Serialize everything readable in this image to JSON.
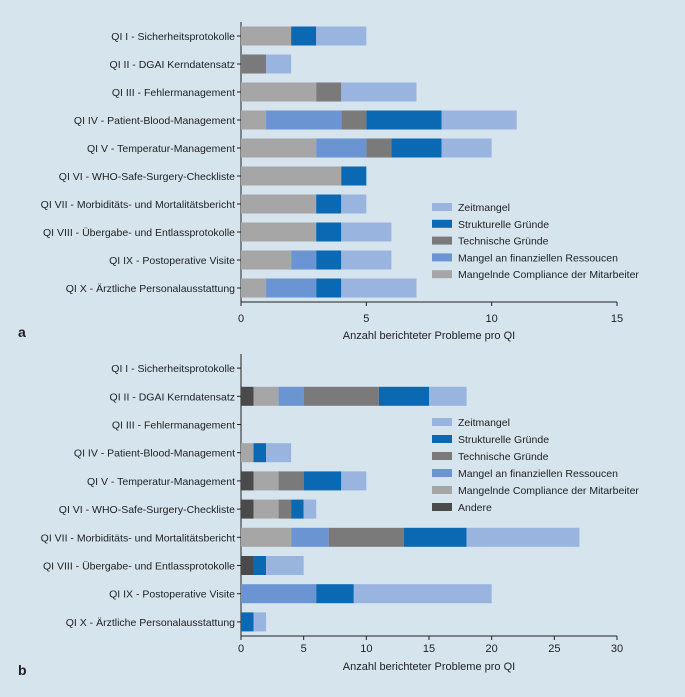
{
  "chart_data": [
    {
      "panel": "a",
      "type": "bar",
      "orientation": "horizontal",
      "stacked": true,
      "xlabel": "Anzahl berichteter Probleme pro QI",
      "xlim": [
        0,
        15
      ],
      "xticks": [
        0,
        5,
        10,
        15
      ],
      "categories": [
        "QI I - Sicherheitsprotokolle",
        "QI II - DGAI Kerndatensatz",
        "QI III - Fehlermanagement",
        "QI IV - Patient-Blood-Management",
        "QI V - Temperatur-Management",
        "QI VI - WHO-Safe-Surgery-Checkliste",
        "QI VII - Morbiditäts- und Mortalitätsbericht",
        "QI VIII - Übergabe- und Entlassprotokolle",
        "QI IX - Postoperative Visite",
        "QI X - Ärztliche Personalausstattung"
      ],
      "series": [
        {
          "name": "Mangelnde Compliance der Mitarbeiter",
          "color": "#a6a6a6",
          "values": [
            2,
            0,
            3,
            1,
            3,
            4,
            3,
            3,
            2,
            1
          ]
        },
        {
          "name": "Technische Gründe",
          "color": "#7a7a7a",
          "values": [
            0,
            1,
            1,
            0,
            0,
            0,
            0,
            0,
            0,
            0
          ]
        },
        {
          "name": "Mangel an finanziellen Ressoucen",
          "color": "#6a95d2",
          "values": [
            0,
            0,
            0,
            3,
            2,
            0,
            0,
            0,
            1,
            2
          ]
        },
        {
          "name": "Technische Gründe",
          "color": "#7a7a7a",
          "values": [
            0,
            0,
            0,
            1,
            1,
            0,
            0,
            0,
            0,
            0
          ]
        },
        {
          "name": "Strukturelle Gründe",
          "color": "#0b68b3",
          "values": [
            1,
            0,
            0,
            3,
            2,
            1,
            1,
            1,
            1,
            1
          ]
        },
        {
          "name": "Zeitmangel",
          "color": "#99b4de",
          "values": [
            2,
            1,
            3,
            3,
            2,
            0,
            1,
            2,
            2,
            3
          ]
        }
      ],
      "legend": [
        {
          "name": "Zeitmangel",
          "color": "#99b4de"
        },
        {
          "name": "Strukturelle Gründe",
          "color": "#0b68b3"
        },
        {
          "name": "Technische Gründe",
          "color": "#7a7a7a"
        },
        {
          "name": "Mangel an finanziellen Ressoucen",
          "color": "#6a95d2"
        },
        {
          "name": "Mangelnde Compliance der Mitarbeiter",
          "color": "#a6a6a6"
        }
      ]
    },
    {
      "panel": "b",
      "type": "bar",
      "orientation": "horizontal",
      "stacked": true,
      "xlabel": "Anzahl berichteter Probleme pro QI",
      "xlim": [
        0,
        30
      ],
      "xticks": [
        0,
        5,
        10,
        15,
        20,
        25,
        30
      ],
      "categories": [
        "QI I - Sicherheitsprotokolle",
        "QI II - DGAI Kerndatensatz",
        "QI III - Fehlermanagement",
        "QI IV - Patient-Blood-Management",
        "QI V - Temperatur-Management",
        "QI VI - WHO-Safe-Surgery-Checkliste",
        "QI VII - Morbiditäts- und Mortalitätsbericht",
        "QI VIII - Übergabe- und Entlassprotokolle",
        "QI IX - Postoperative Visite",
        "QI X - Ärztliche Personalausstattung"
      ],
      "series": [
        {
          "name": "Andere",
          "color": "#4a4a4a",
          "values": [
            0,
            1,
            0,
            0,
            1,
            1,
            0,
            1,
            0,
            0
          ]
        },
        {
          "name": "Mangelnde Compliance der Mitarbeiter",
          "color": "#a6a6a6",
          "values": [
            0,
            2,
            0,
            1,
            2,
            2,
            4,
            0,
            0,
            0
          ]
        },
        {
          "name": "Technische Gründe",
          "color": "#7a7a7a",
          "values": [
            0,
            0,
            0,
            0,
            2,
            1,
            0,
            0,
            0,
            0
          ]
        },
        {
          "name": "Mangel an finanziellen Ressoucen",
          "color": "#6a95d2",
          "values": [
            0,
            2,
            0,
            0,
            0,
            0,
            3,
            0,
            6,
            0
          ]
        },
        {
          "name": "Technische Gründe",
          "color": "#7a7a7a",
          "values": [
            0,
            6,
            0,
            0,
            0,
            0,
            6,
            0,
            0,
            0
          ]
        },
        {
          "name": "Strukturelle Gründe",
          "color": "#0b68b3",
          "values": [
            0,
            4,
            0,
            1,
            3,
            1,
            5,
            1,
            3,
            1
          ]
        },
        {
          "name": "Zeitmangel",
          "color": "#99b4de",
          "values": [
            0,
            3,
            0,
            2,
            2,
            1,
            9,
            3,
            11,
            1
          ]
        }
      ],
      "legend": [
        {
          "name": "Zeitmangel",
          "color": "#99b4de"
        },
        {
          "name": "Strukturelle Gründe",
          "color": "#0b68b3"
        },
        {
          "name": "Technische Gründe",
          "color": "#7a7a7a"
        },
        {
          "name": "Mangel an finanziellen Ressoucen",
          "color": "#6a95d2"
        },
        {
          "name": "Mangelnde Compliance der Mitarbeiter",
          "color": "#a6a6a6"
        },
        {
          "name": "Andere",
          "color": "#4a4a4a"
        }
      ]
    }
  ]
}
